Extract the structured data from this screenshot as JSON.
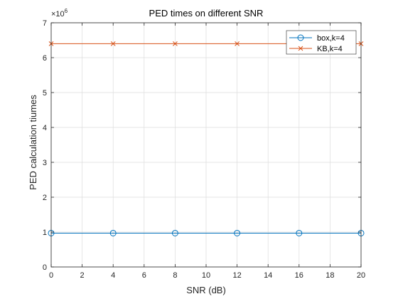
{
  "chart_data": {
    "type": "line",
    "title": "PED times on different SNR",
    "xlabel": "SNR (dB)",
    "ylabel": "PED calculation tiumes",
    "exponent_label": "×10",
    "exponent_power": "6",
    "xlim": [
      0,
      20
    ],
    "ylim": [
      0,
      7
    ],
    "xticks": [
      "0",
      "2",
      "4",
      "6",
      "8",
      "10",
      "12",
      "14",
      "16",
      "18",
      "20"
    ],
    "yticks": [
      "0",
      "1",
      "2",
      "3",
      "4",
      "5",
      "6",
      "7"
    ],
    "grid": true,
    "legend_position": "top-right",
    "x": [
      0,
      4,
      8,
      12,
      16,
      20
    ],
    "series": [
      {
        "name": "box,k=4",
        "values": [
          0.97,
          0.97,
          0.97,
          0.97,
          0.97,
          0.97
        ],
        "color": "#0072BD",
        "marker": "circle"
      },
      {
        "name": "KB,k=4",
        "values": [
          6.4,
          6.4,
          6.4,
          6.4,
          6.4,
          6.4
        ],
        "color": "#D95319",
        "marker": "x"
      }
    ]
  }
}
